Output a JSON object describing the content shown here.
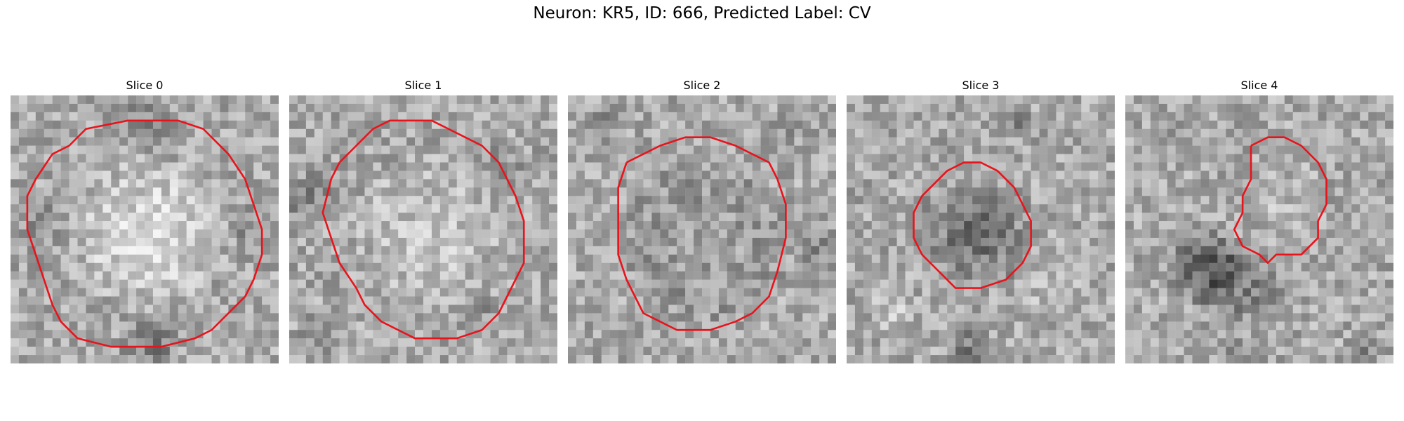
{
  "figure": {
    "title": "Neuron: KR5, ID: 666, Predicted Label: CV",
    "contour_color": "#e8141c",
    "image_colormap": "grayscale"
  },
  "slices": [
    {
      "title": "Slice 0"
    },
    {
      "title": "Slice 1"
    },
    {
      "title": "Slice 2"
    },
    {
      "title": "Slice 3"
    },
    {
      "title": "Slice 4"
    }
  ]
}
